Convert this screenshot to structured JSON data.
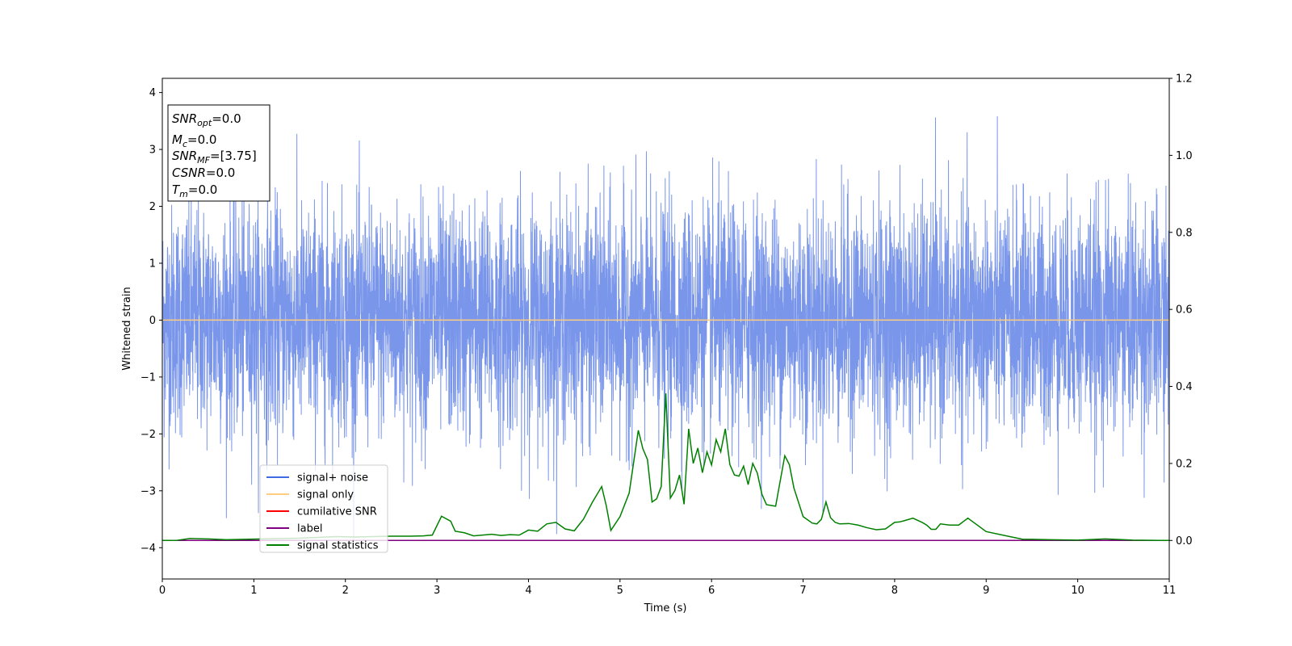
{
  "chart_data": {
    "type": "line",
    "xlabel": "Time (s)",
    "ylabel": "Whitened strain",
    "xlim": [
      0,
      11
    ],
    "ylim": [
      -4.55,
      4.25
    ],
    "y2lim": [
      -0.1,
      1.2
    ],
    "xticks": [
      "0",
      "1",
      "2",
      "3",
      "4",
      "5",
      "6",
      "7",
      "8",
      "9",
      "10",
      "11"
    ],
    "yticks": [
      "4",
      "3",
      "2",
      "1",
      "0",
      "−1",
      "−2",
      "−3",
      "−4"
    ],
    "y2ticks": [
      "1.2",
      "1.0",
      "0.8",
      "0.6",
      "0.4",
      "0.2",
      "0.0"
    ],
    "grid": false,
    "legend_position": "lower-left",
    "legend": [
      {
        "label": "signal+ noise",
        "color": "#4169e1"
      },
      {
        "label": "signal only",
        "color": "#ffcc80"
      },
      {
        "label": "cumilative SNR",
        "color": "#ff0000"
      },
      {
        "label": "label",
        "color": "#800080"
      },
      {
        "label": "signal statistics",
        "color": "#008000"
      }
    ],
    "info_box": {
      "snr_opt": {
        "main": "SNR",
        "sub": "opt",
        "value": "=0.0"
      },
      "mc": {
        "main": "M",
        "sub": "c",
        "value": "=0.0"
      },
      "snr_mf": {
        "main": "SNR",
        "sub": "MF",
        "value": "=[3.75]"
      },
      "csnr": {
        "main": "CSNR",
        "value": "=0.0"
      },
      "tm": {
        "main": "T",
        "sub": "m",
        "value": "=0.0"
      }
    },
    "series": [
      {
        "name": "signal+ noise",
        "axis": "left",
        "color": "#4169e1",
        "noise": {
          "std": 1.0,
          "min": -4.0,
          "max": 3.9,
          "dt": 0.002
        }
      },
      {
        "name": "signal only",
        "axis": "left",
        "color": "#ffcc80",
        "x": [
          0,
          11
        ],
        "y": [
          0,
          0
        ]
      },
      {
        "name": "label",
        "axis": "right",
        "color": "#800080",
        "x": [
          0,
          11
        ],
        "y": [
          0,
          0
        ]
      },
      {
        "name": "signal statistics",
        "axis": "right",
        "color": "#008000",
        "x": [
          0,
          0.15,
          0.3,
          0.5,
          0.7,
          0.9,
          1.1,
          1.3,
          1.5,
          1.7,
          1.9,
          2.1,
          2.3,
          2.5,
          2.7,
          2.85,
          2.95,
          3.05,
          3.15,
          3.2,
          3.3,
          3.4,
          3.5,
          3.6,
          3.7,
          3.8,
          3.9,
          4.0,
          4.1,
          4.2,
          4.3,
          4.4,
          4.5,
          4.6,
          4.7,
          4.8,
          4.85,
          4.9,
          5.0,
          5.1,
          5.2,
          5.25,
          5.3,
          5.35,
          5.4,
          5.45,
          5.5,
          5.55,
          5.6,
          5.65,
          5.7,
          5.75,
          5.8,
          5.85,
          5.9,
          5.95,
          6.0,
          6.05,
          6.1,
          6.15,
          6.2,
          6.25,
          6.3,
          6.35,
          6.4,
          6.45,
          6.5,
          6.55,
          6.6,
          6.7,
          6.8,
          6.85,
          6.9,
          7.0,
          7.1,
          7.15,
          7.2,
          7.25,
          7.3,
          7.35,
          7.4,
          7.5,
          7.6,
          7.7,
          7.8,
          7.9,
          8.0,
          8.05,
          8.1,
          8.2,
          8.3,
          8.35,
          8.4,
          8.45,
          8.5,
          8.6,
          8.7,
          8.8,
          9.0,
          9.2,
          9.4,
          9.5,
          9.7,
          10.0,
          10.3,
          10.6,
          10.9,
          11.0
        ],
        "y": [
          0.0,
          0.0,
          0.005,
          0.004,
          0.002,
          0.003,
          0.004,
          0.005,
          0.006,
          0.008,
          0.01,
          0.009,
          0.01,
          0.011,
          0.011,
          0.012,
          0.014,
          0.063,
          0.05,
          0.024,
          0.02,
          0.012,
          0.014,
          0.016,
          0.013,
          0.015,
          0.014,
          0.027,
          0.024,
          0.043,
          0.047,
          0.03,
          0.025,
          0.055,
          0.1,
          0.14,
          0.09,
          0.026,
          0.062,
          0.123,
          0.286,
          0.238,
          0.21,
          0.1,
          0.108,
          0.14,
          0.382,
          0.11,
          0.13,
          0.17,
          0.094,
          0.29,
          0.2,
          0.24,
          0.176,
          0.23,
          0.196,
          0.262,
          0.23,
          0.29,
          0.197,
          0.17,
          0.167,
          0.193,
          0.145,
          0.2,
          0.175,
          0.12,
          0.093,
          0.089,
          0.22,
          0.197,
          0.136,
          0.062,
          0.045,
          0.043,
          0.055,
          0.1,
          0.059,
          0.047,
          0.043,
          0.044,
          0.04,
          0.033,
          0.028,
          0.03,
          0.047,
          0.048,
          0.051,
          0.058,
          0.047,
          0.04,
          0.029,
          0.029,
          0.043,
          0.04,
          0.04,
          0.058,
          0.023,
          0.013,
          0.003,
          0.003,
          0.002,
          0.001,
          0.004,
          0.001,
          0.0,
          0.0
        ]
      }
    ]
  }
}
